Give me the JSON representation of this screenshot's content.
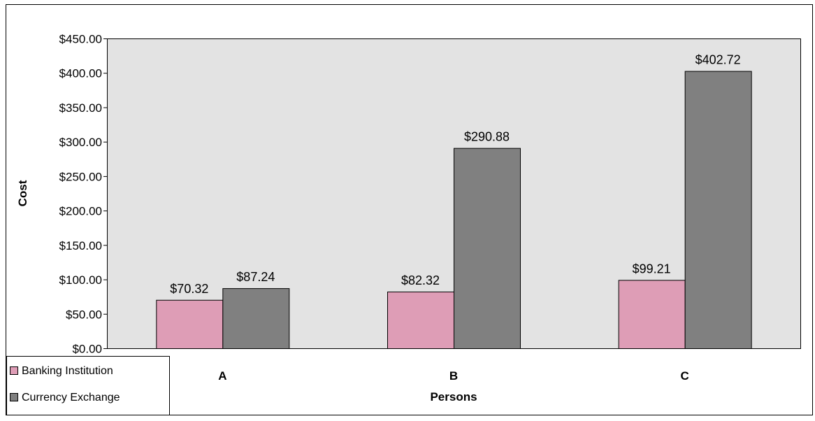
{
  "chart_data": {
    "type": "bar",
    "title": "",
    "xlabel": "Persons",
    "ylabel": "Cost",
    "categories": [
      "A",
      "B",
      "C"
    ],
    "series": [
      {
        "name": "Banking Institution",
        "color": "#de9db6",
        "values": [
          70.32,
          82.32,
          99.21
        ],
        "labels": [
          "$70.32",
          "$82.32",
          "$99.21"
        ]
      },
      {
        "name": "Currency Exchange",
        "color": "#808080",
        "values": [
          87.24,
          290.88,
          402.72
        ],
        "labels": [
          "$87.24",
          "$290.88",
          "$402.72"
        ]
      }
    ],
    "ylim": [
      0,
      450
    ],
    "yticks": [
      0,
      50,
      100,
      150,
      200,
      250,
      300,
      350,
      400,
      450
    ],
    "ytick_labels": [
      "$0.00",
      "$50.00",
      "$100.00",
      "$150.00",
      "$200.00",
      "$250.00",
      "$300.00",
      "$350.00",
      "$400.00",
      "$450.00"
    ],
    "plot_background": "#e3e3e3",
    "grid": false,
    "legend_position": "bottom-left"
  }
}
